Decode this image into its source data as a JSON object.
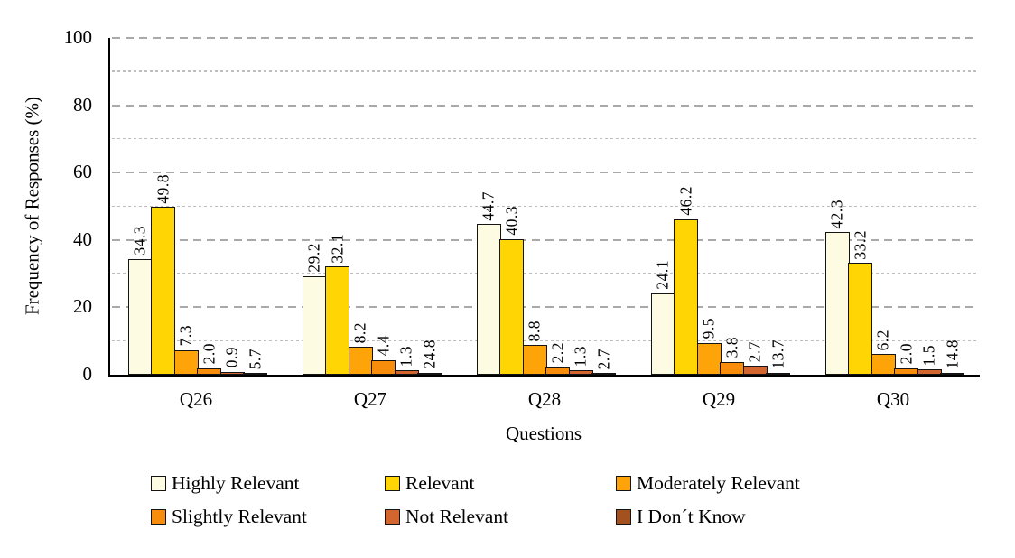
{
  "chart_data": {
    "type": "bar",
    "title": "",
    "xlabel": "Questions",
    "ylabel": "Frequency of Responses (%)",
    "ylim": [
      0,
      100
    ],
    "yticks": [
      0,
      20,
      40,
      60,
      80,
      100
    ],
    "grid": {
      "major_every": 20,
      "minor_every": 10,
      "style": "dashed-horizontal"
    },
    "legend_position": "bottom",
    "categories": [
      "Q26",
      "Q27",
      "Q28",
      "Q29",
      "Q30"
    ],
    "series": [
      {
        "name": "Highly Relevant",
        "color": "#FDFBE2",
        "values": [
          34.3,
          29.2,
          44.7,
          24.1,
          42.3
        ]
      },
      {
        "name": "Relevant",
        "color": "#FFD503",
        "values": [
          49.8,
          32.1,
          40.3,
          46.2,
          33.2
        ]
      },
      {
        "name": "Moderately Relevant",
        "color": "#FFA408",
        "values": [
          7.3,
          8.2,
          8.8,
          9.5,
          6.2
        ]
      },
      {
        "name": "Slightly Relevant",
        "color": "#F78D0A",
        "values": [
          2.0,
          4.4,
          2.2,
          3.8,
          2.0
        ]
      },
      {
        "name": "Not Relevant",
        "color": "#D2662E",
        "values": [
          0.9,
          1.3,
          1.3,
          2.7,
          1.5
        ]
      },
      {
        "name": "I Don´t Know",
        "color": "#A3511F",
        "values": [
          5.7,
          24.8,
          2.7,
          13.7,
          14.8
        ]
      }
    ],
    "value_labels": {
      "shown": true,
      "rotation_deg": 90,
      "decimals": 1
    }
  }
}
